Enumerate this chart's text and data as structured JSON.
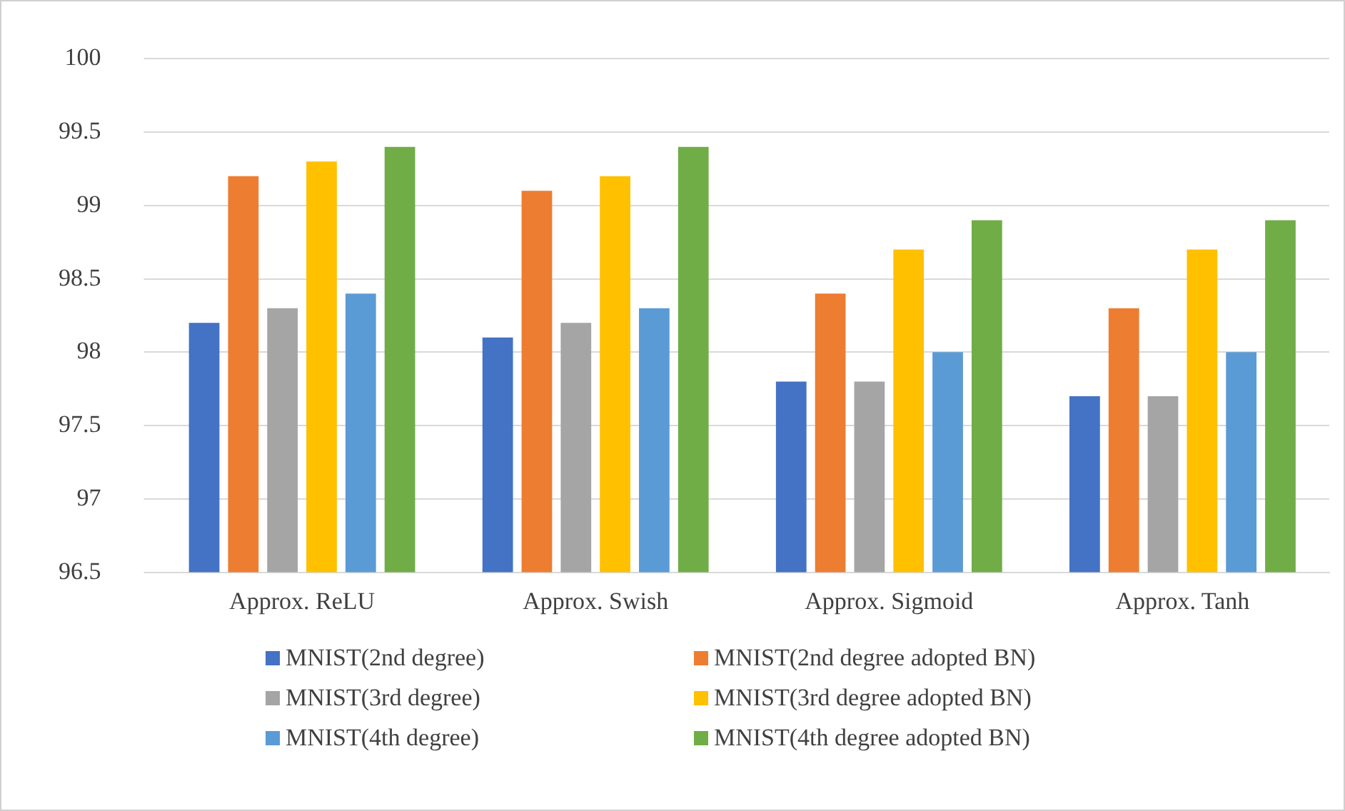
{
  "chart_data": {
    "type": "bar",
    "categories": [
      "Approx. ReLU",
      "Approx. Swish",
      "Approx. Sigmoid",
      "Approx. Tanh"
    ],
    "series": [
      {
        "name": "MNIST(2nd degree)",
        "color": "#4472c4",
        "values": [
          98.2,
          98.1,
          97.8,
          97.7
        ]
      },
      {
        "name": "MNIST(2nd degree adopted BN)",
        "color": "#ed7d31",
        "values": [
          99.2,
          99.1,
          98.4,
          98.3
        ]
      },
      {
        "name": "MNIST(3rd degree)",
        "color": "#a5a5a5",
        "values": [
          98.3,
          98.2,
          97.8,
          97.7
        ]
      },
      {
        "name": "MNIST(3rd degree adopted BN)",
        "color": "#ffc000",
        "values": [
          99.3,
          99.2,
          98.7,
          98.7
        ]
      },
      {
        "name": "MNIST(4th degree)",
        "color": "#5b9bd5",
        "values": [
          98.4,
          98.3,
          98.0,
          98.0
        ]
      },
      {
        "name": "MNIST(4th degree adopted BN)",
        "color": "#70ad47",
        "values": [
          99.4,
          99.4,
          98.9,
          98.9
        ]
      }
    ],
    "ylim": [
      96.5,
      100
    ],
    "yticks": [
      96.5,
      97,
      97.5,
      98,
      98.5,
      99,
      99.5,
      100
    ],
    "grid": "y",
    "legend": "bottom"
  }
}
